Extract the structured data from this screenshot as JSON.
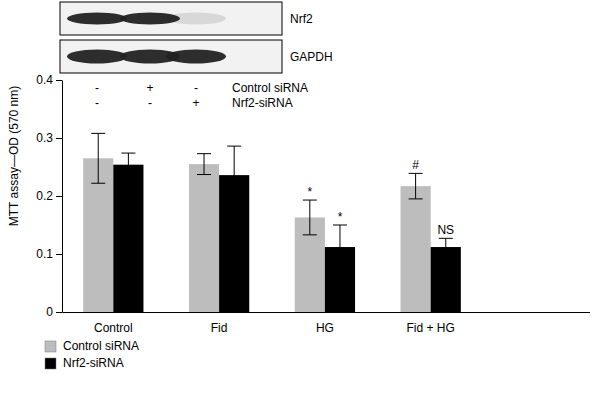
{
  "chart_data": {
    "type": "bar",
    "y_label": "MTT assay—OD (570 nm)",
    "categories": [
      "Control",
      "Fid",
      "HG",
      "Fid + HG"
    ],
    "series": [
      {
        "name": "Control siRNA",
        "color": "#bdbdbd",
        "values": [
          0.265,
          0.255,
          0.163,
          0.217
        ],
        "errors": [
          0.043,
          0.018,
          0.03,
          0.022
        ],
        "significance": [
          null,
          null,
          "*",
          "#"
        ]
      },
      {
        "name": "Nrf2-siRNA",
        "color": "#000000",
        "values": [
          0.254,
          0.236,
          0.112,
          0.112
        ],
        "errors": [
          0.02,
          0.05,
          0.038,
          0.015
        ],
        "significance": [
          null,
          null,
          "*",
          "NS"
        ]
      }
    ],
    "ylim": [
      0,
      0.4
    ],
    "yticks": [
      0,
      0.1,
      0.2,
      0.3,
      0.4
    ],
    "legend": "bottom-left"
  },
  "inset": {
    "bands": [
      "Nrf2",
      "GAPDH"
    ],
    "rows": [
      {
        "label": "Control siRNA",
        "marks": [
          "-",
          "+",
          "-"
        ]
      },
      {
        "label": "Nrf2-siRNA",
        "marks": [
          "-",
          "-",
          "+"
        ]
      }
    ]
  }
}
